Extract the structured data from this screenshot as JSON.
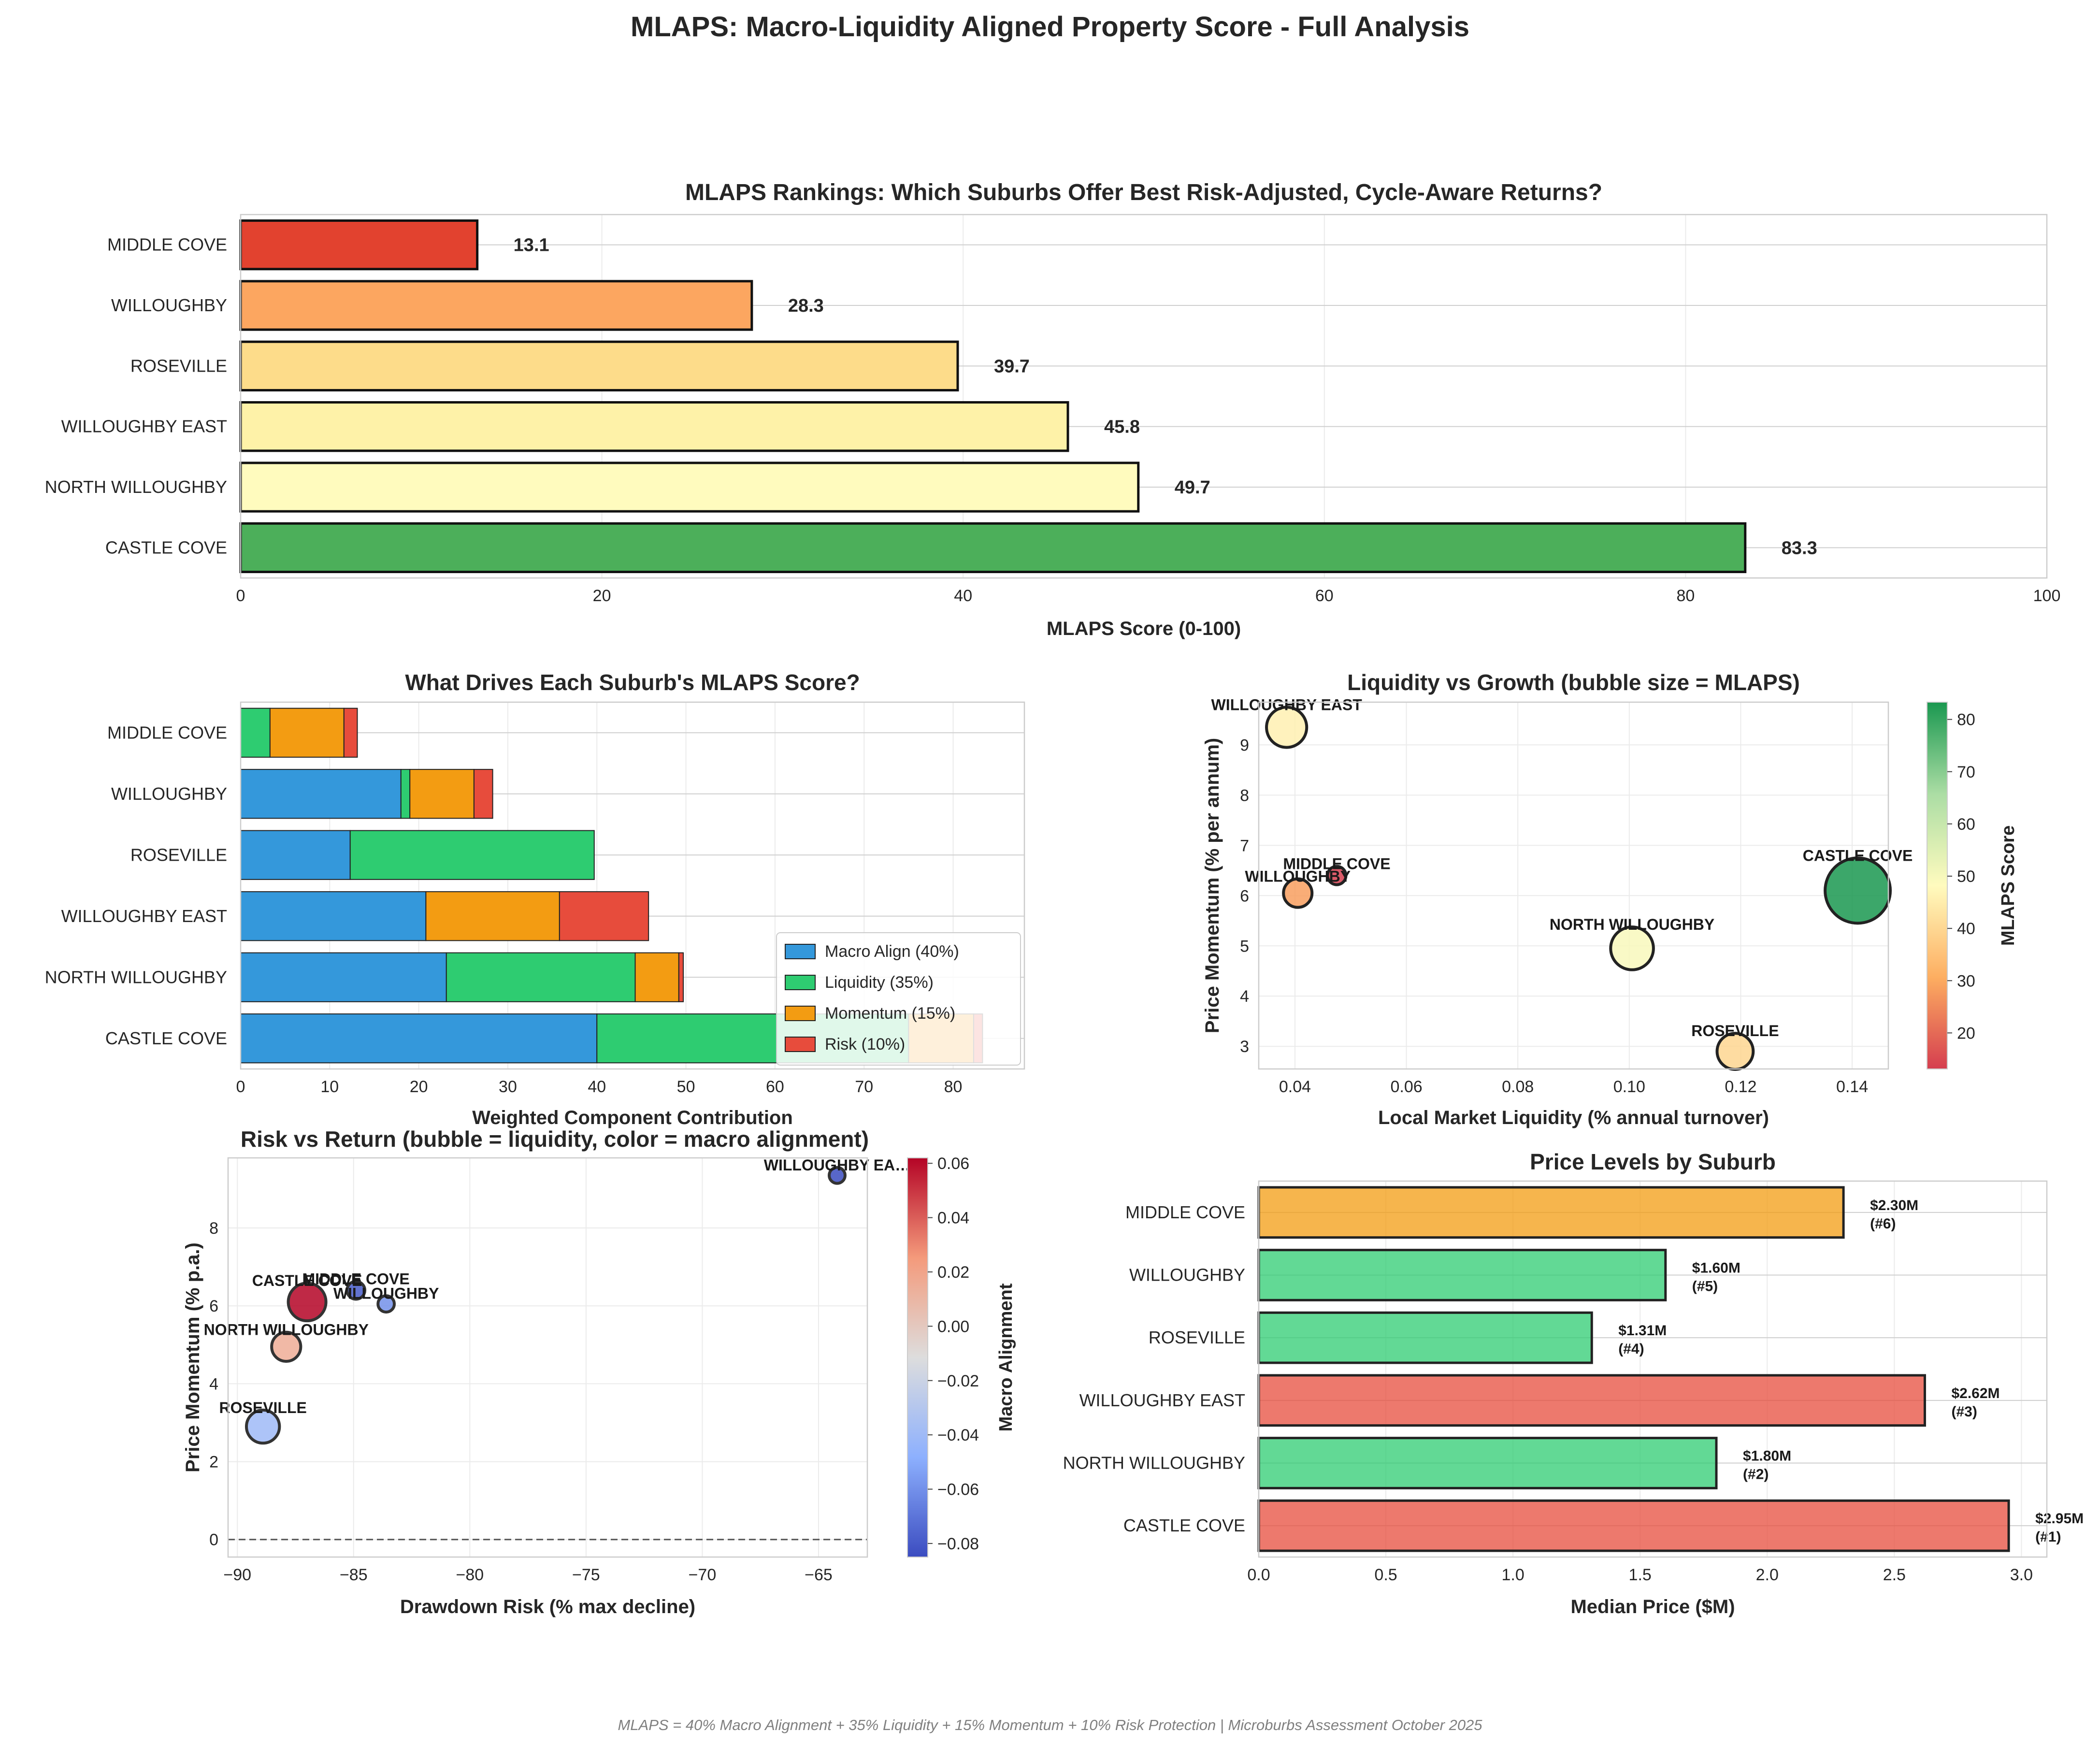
{
  "suptitle": "MLAPS: Macro-Liquidity Aligned Property Score - Full Analysis",
  "footer": "MLAPS = 40% Macro Alignment + 35% Liquidity + 15% Momentum + 10% Risk Protection | Microburbs Assessment October 2025",
  "chart_data": [
    {
      "id": "rankings",
      "type": "bar",
      "orientation": "horizontal",
      "title": "MLAPS Rankings: Which Suburbs Offer Best Risk-Adjusted, Cycle-Aware Returns?",
      "xlabel": "MLAPS Score (0-100)",
      "ylabel": "",
      "xlim": [
        0,
        100
      ],
      "xticks": [
        0,
        20,
        40,
        60,
        80,
        100
      ],
      "categories": [
        "CASTLE COVE",
        "NORTH WILLOUGHBY",
        "WILLOUGHBY EAST",
        "ROSEVILLE",
        "WILLOUGHBY",
        "MIDDLE COVE"
      ],
      "values": [
        83.3,
        49.7,
        45.8,
        39.7,
        28.3,
        13.1
      ],
      "value_labels": [
        "83.3",
        "49.7",
        "45.8",
        "39.7",
        "28.3",
        "13.1"
      ],
      "colors": [
        "#4caf5a",
        "#fffbbe",
        "#fef2a8",
        "#fddc8a",
        "#fca660",
        "#e2422f"
      ],
      "grid": true
    },
    {
      "id": "components",
      "type": "bar",
      "orientation": "horizontal",
      "stacked": true,
      "title": "What Drives Each Suburb's MLAPS Score?",
      "xlabel": "Weighted Component Contribution",
      "ylabel": "",
      "xlim": [
        0,
        88
      ],
      "xticks": [
        0,
        10,
        20,
        30,
        40,
        50,
        60,
        70,
        80
      ],
      "categories": [
        "CASTLE COVE",
        "NORTH WILLOUGHBY",
        "WILLOUGHBY EAST",
        "ROSEVILLE",
        "WILLOUGHBY",
        "MIDDLE COVE"
      ],
      "series": [
        {
          "name": "Macro Align (40%)",
          "color": "#3498db",
          "values": [
            40.0,
            23.1,
            20.8,
            12.3,
            18.0,
            0.0
          ]
        },
        {
          "name": "Liquidity (35%)",
          "color": "#2ecc71",
          "values": [
            35.0,
            21.2,
            0.0,
            27.4,
            1.0,
            3.3
          ]
        },
        {
          "name": "Momentum (15%)",
          "color": "#f39c12",
          "values": [
            7.3,
            4.9,
            15.0,
            0.0,
            7.2,
            8.3
          ]
        },
        {
          "name": "Risk (10%)",
          "color": "#e74c3c",
          "values": [
            1.0,
            0.5,
            10.0,
            0.0,
            2.1,
            1.5
          ]
        }
      ],
      "legend_position": "lower right",
      "grid": true
    },
    {
      "id": "liquidity_growth",
      "type": "scatter",
      "title": "Liquidity vs Growth (bubble size = MLAPS)",
      "xlabel": "Local Market Liquidity (% annual turnover)",
      "ylabel": "Price Momentum (% per annum)",
      "xlim": [
        0.0335,
        0.1465
      ],
      "ylim": [
        2.55,
        9.85
      ],
      "xticks": [
        0.04,
        0.06,
        0.08,
        0.1,
        0.12,
        0.14
      ],
      "xtick_labels": [
        "0.04",
        "0.06",
        "0.08",
        "0.10",
        "0.12",
        "0.14"
      ],
      "yticks": [
        3,
        4,
        5,
        6,
        7,
        8,
        9
      ],
      "colorbar_label": "MLAPS Score",
      "colorbar_range": [
        13.1,
        83.3
      ],
      "colorbar_ticks": [
        20,
        30,
        40,
        50,
        60,
        70,
        80
      ],
      "points": [
        {
          "label": "WILLOUGHBY EAST",
          "x": 0.0385,
          "y": 9.35,
          "score": 45.8
        },
        {
          "label": "MIDDLE COVE",
          "x": 0.0475,
          "y": 6.4,
          "score": 13.1
        },
        {
          "label": "WILLOUGHBY",
          "x": 0.0405,
          "y": 6.05,
          "score": 28.3
        },
        {
          "label": "CASTLE COVE",
          "x": 0.141,
          "y": 6.1,
          "score": 83.3
        },
        {
          "label": "NORTH WILLOUGHBY",
          "x": 0.1005,
          "y": 4.95,
          "score": 49.7
        },
        {
          "label": "ROSEVILLE",
          "x": 0.119,
          "y": 2.9,
          "score": 39.7
        }
      ],
      "grid": true
    },
    {
      "id": "risk_return",
      "type": "scatter",
      "title": "Risk vs Return (bubble = liquidity, color = macro alignment)",
      "xlabel": "Drawdown Risk (% max decline)",
      "ylabel": "Price Momentum (% p.a.)",
      "xlim": [
        -90.4,
        -62.9
      ],
      "ylim": [
        -0.45,
        9.8
      ],
      "xticks": [
        -90,
        -85,
        -80,
        -75,
        -70,
        -65
      ],
      "xtick_labels": [
        "−90",
        "−85",
        "−80",
        "−75",
        "−70",
        "−65"
      ],
      "yticks": [
        0,
        2,
        4,
        6,
        8
      ],
      "colorbar_label": "Macro Alignment",
      "colorbar_range": [
        -0.085,
        0.062
      ],
      "colorbar_ticks": [
        -0.08,
        -0.06,
        -0.04,
        -0.02,
        0.0,
        0.02,
        0.04,
        0.06
      ],
      "colorbar_tick_labels": [
        "−0.08",
        "−0.06",
        "−0.04",
        "−0.02",
        "0.00",
        "0.02",
        "0.04",
        "0.06"
      ],
      "reference_line_y": 0,
      "points": [
        {
          "label": "WILLOUGHBY EA…",
          "x": -64.2,
          "y": 9.35,
          "liquidity": 0.0385,
          "macro": -0.085
        },
        {
          "label": "MIDDLE COVE",
          "x": -84.9,
          "y": 6.4,
          "liquidity": 0.0475,
          "macro": -0.08
        },
        {
          "label": "WILLOUGHBY",
          "x": -83.6,
          "y": 6.05,
          "liquidity": 0.0405,
          "macro": -0.06
        },
        {
          "label": "CASTLE COVE",
          "x": -87.0,
          "y": 6.1,
          "liquidity": 0.141,
          "macro": 0.062
        },
        {
          "label": "NORTH WILLOUGHBY",
          "x": -87.9,
          "y": 4.95,
          "liquidity": 0.1005,
          "macro": 0.015
        },
        {
          "label": "ROSEVILLE",
          "x": -88.9,
          "y": 2.9,
          "liquidity": 0.119,
          "macro": -0.04
        }
      ],
      "grid": true
    },
    {
      "id": "price_levels",
      "type": "bar",
      "orientation": "horizontal",
      "title": "Price Levels by Suburb",
      "xlabel": "Median Price ($M)",
      "ylabel": "",
      "xlim": [
        0,
        3.1
      ],
      "xticks": [
        0.0,
        0.5,
        1.0,
        1.5,
        2.0,
        2.5,
        3.0
      ],
      "xtick_labels": [
        "0.0",
        "0.5",
        "1.0",
        "1.5",
        "2.0",
        "2.5",
        "3.0"
      ],
      "categories": [
        "CASTLE COVE",
        "NORTH WILLOUGHBY",
        "WILLOUGHBY EAST",
        "ROSEVILLE",
        "WILLOUGHBY",
        "MIDDLE COVE"
      ],
      "values": [
        2.95,
        1.8,
        2.62,
        1.31,
        1.6,
        2.3
      ],
      "value_labels": [
        "$2.95M",
        "$1.80M",
        "$2.62M",
        "$1.31M",
        "$1.60M",
        "$2.30M"
      ],
      "rank_labels": [
        "(#1)",
        "(#2)",
        "(#3)",
        "(#4)",
        "(#5)",
        "(#6)"
      ],
      "colors": [
        "#e74c3c",
        "#2ecc71",
        "#e74c3c",
        "#2ecc71",
        "#2ecc71",
        "#f39c12"
      ],
      "grid": true
    }
  ]
}
